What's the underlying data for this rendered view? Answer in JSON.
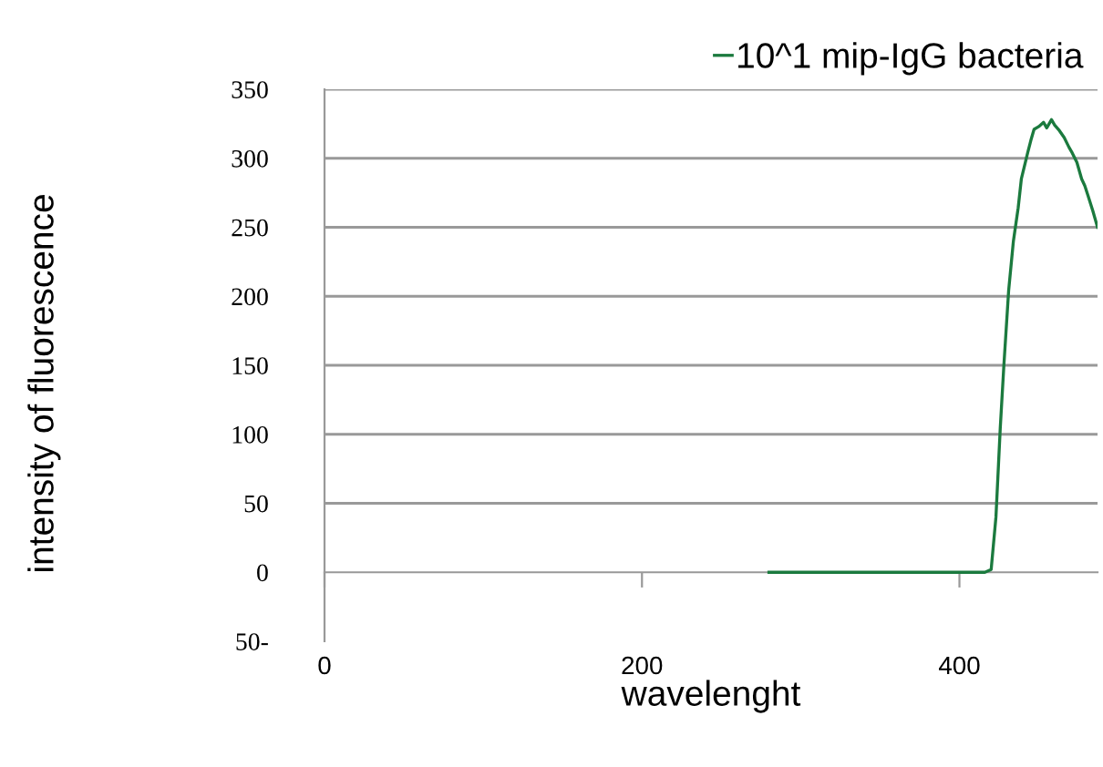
{
  "chart_data": {
    "type": "line",
    "xlabel": "wavelenght",
    "ylabel": "intensity of fluorescence",
    "xlim": [
      0,
      487
    ],
    "xticks": [
      0,
      200,
      400
    ],
    "ylim": [
      -50,
      350
    ],
    "yticks": [
      {
        "value": -50,
        "label": "50-"
      },
      0,
      50,
      100,
      150,
      200,
      250,
      300,
      350
    ],
    "grid": "y",
    "legend": "top right",
    "marker": "none",
    "line_style": "solid",
    "series": [
      {
        "name": "10^1 mip-IgG bacteria",
        "color": "#1b7a3e",
        "x": [
          280,
          320,
          360,
          400,
          416,
          420,
          423,
          425.7,
          428,
          431,
          434,
          437,
          439,
          443,
          445,
          447,
          450,
          453,
          455,
          458,
          460,
          463,
          466,
          469,
          471,
          474,
          477,
          479,
          481,
          484,
          487
        ],
        "values": [
          0,
          0,
          0,
          0,
          0,
          2,
          40,
          104,
          150,
          204,
          240,
          264,
          285,
          304,
          313,
          321,
          323,
          326,
          322,
          328,
          324,
          320,
          315,
          308,
          304,
          297,
          285,
          280,
          273,
          262,
          250
        ]
      }
    ]
  }
}
